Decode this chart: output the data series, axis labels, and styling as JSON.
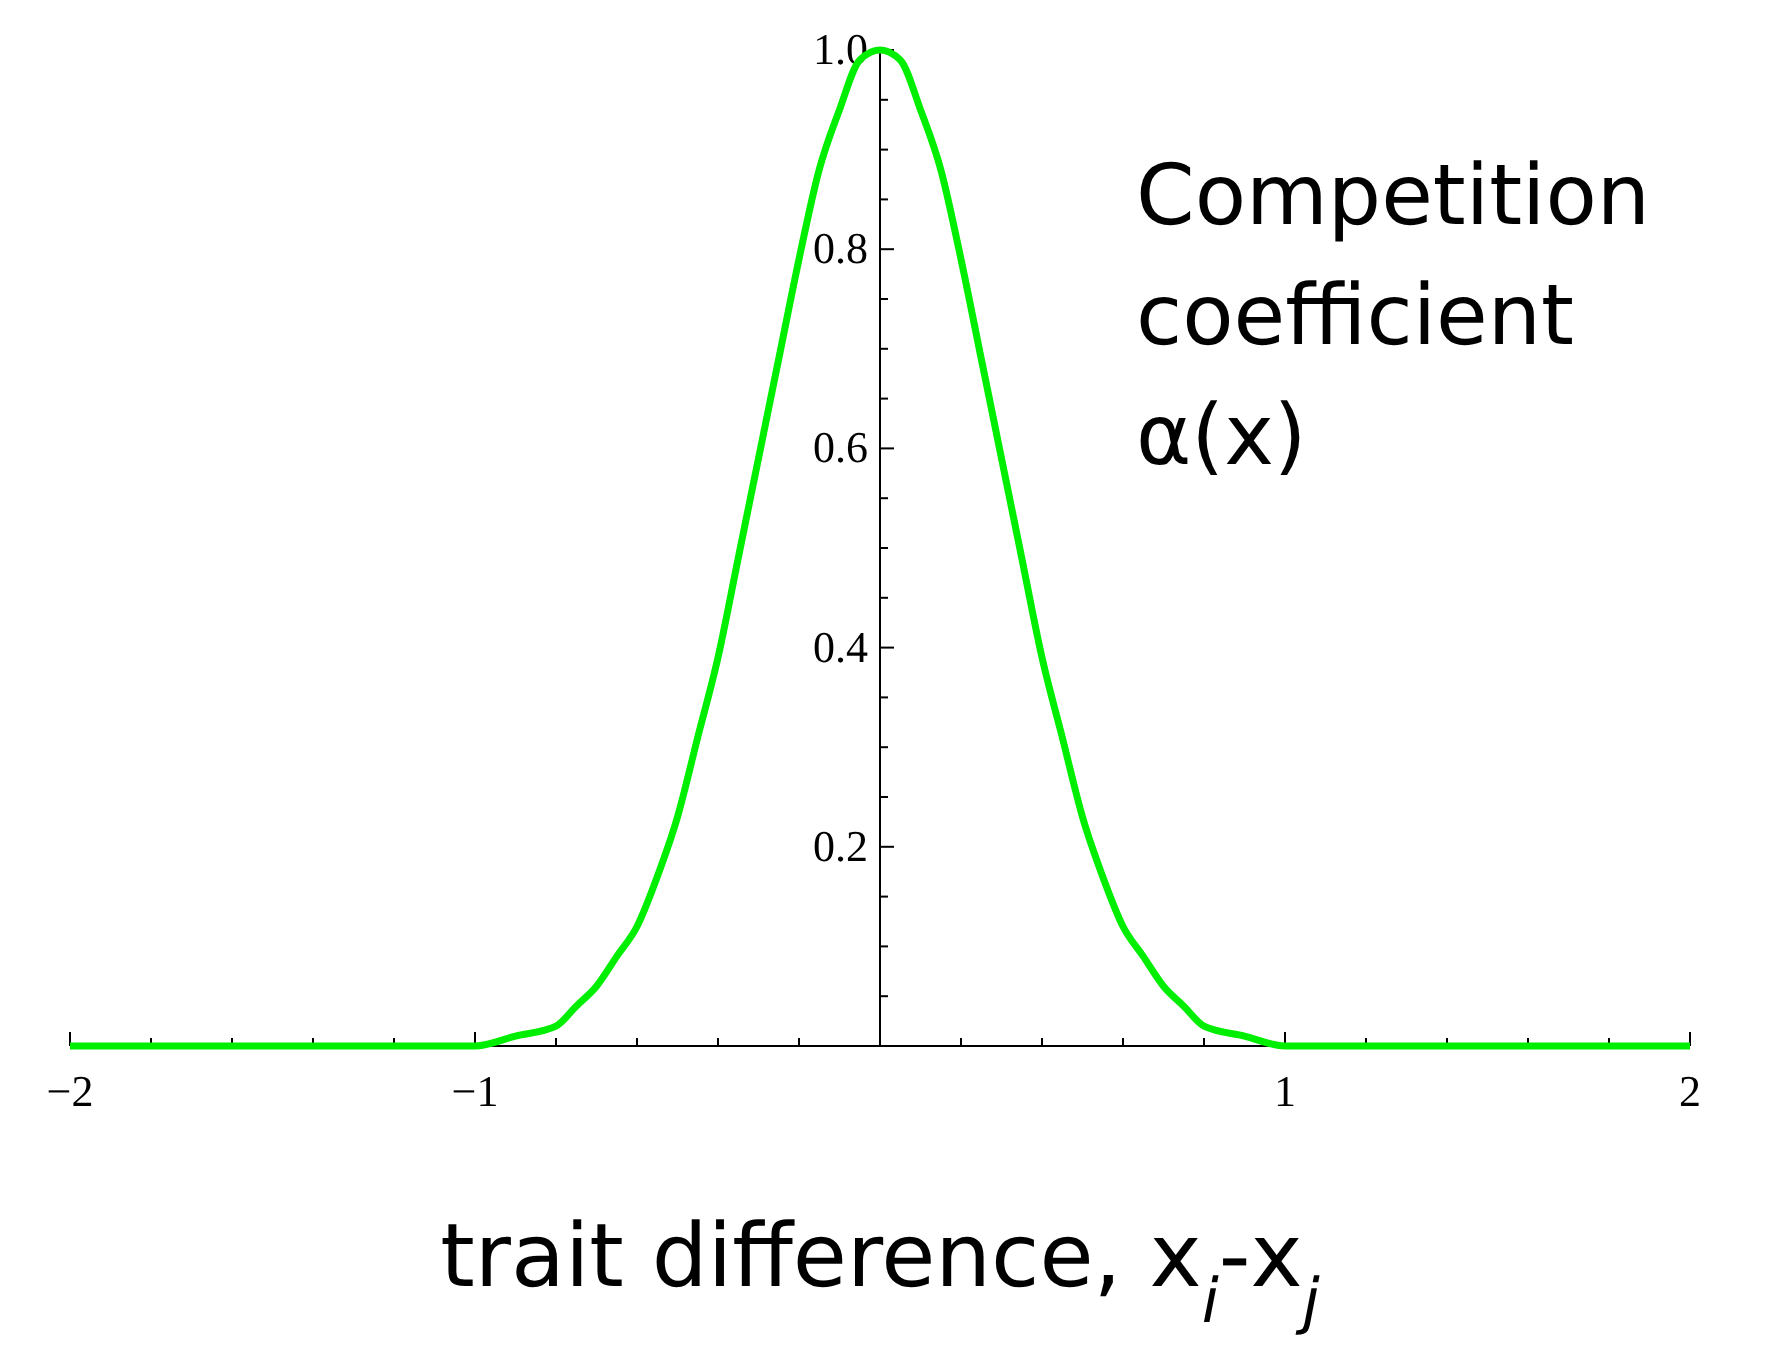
{
  "chart_data": {
    "type": "line",
    "xlabel": "trait difference, x$_{i}$-x$_{j}$",
    "ylabel": "Competition coefficient α(x)",
    "x": [
      -2,
      -1.5,
      -1.2,
      -1.1,
      -1,
      -0.9,
      -0.8,
      -0.75,
      -0.7,
      -0.65,
      -0.6,
      -0.55,
      -0.5,
      -0.45,
      -0.4,
      -0.35,
      -0.3,
      -0.25,
      -0.2,
      -0.15,
      -0.1,
      -0.05,
      0,
      0.05,
      0.1,
      0.15,
      0.2,
      0.25,
      0.3,
      0.35,
      0.4,
      0.45,
      0.5,
      0.55,
      0.6,
      0.65,
      0.7,
      0.75,
      0.8,
      0.9,
      1,
      1.1,
      1.2,
      1.5,
      2
    ],
    "series": [
      {
        "color": "#00ee00",
        "values": [
          0,
          0,
          0,
          0,
          0,
          0.01,
          0.02,
          0.04,
          0.06,
          0.09,
          0.12,
          0.17,
          0.23,
          0.31,
          0.39,
          0.49,
          0.59,
          0.69,
          0.79,
          0.88,
          0.94,
          0.99,
          1,
          0.99,
          0.94,
          0.88,
          0.79,
          0.69,
          0.59,
          0.49,
          0.39,
          0.31,
          0.23,
          0.17,
          0.12,
          0.09,
          0.06,
          0.04,
          0.02,
          0.01,
          0,
          0,
          0,
          0,
          0
        ]
      }
    ],
    "xlim": [
      -2,
      2
    ],
    "ylim": [
      0,
      1
    ],
    "xticks": [
      -2,
      {
        "value": -1.8,
        "label": null
      },
      {
        "value": -1.6,
        "label": null
      },
      {
        "value": -1.4,
        "label": null
      },
      {
        "value": -1.2,
        "label": null
      },
      -1,
      {
        "value": -0.8,
        "label": null
      },
      {
        "value": -0.6,
        "label": null
      },
      {
        "value": -0.4,
        "label": null
      },
      {
        "value": -0.2,
        "label": null
      },
      {
        "value": 0.2,
        "label": null
      },
      {
        "value": 0.4,
        "label": null
      },
      {
        "value": 0.6,
        "label": null
      },
      {
        "value": 0.8,
        "label": null
      },
      1,
      {
        "value": 1.2,
        "label": null
      },
      {
        "value": 1.4,
        "label": null
      },
      {
        "value": 1.6,
        "label": null
      },
      {
        "value": 1.8,
        "label": null
      },
      2
    ],
    "yticks": [
      {
        "value": 0.05,
        "label": null
      },
      {
        "value": 0.1,
        "label": null
      },
      {
        "value": 0.15,
        "label": null
      },
      0.2,
      {
        "value": 0.25,
        "label": null
      },
      {
        "value": 0.3,
        "label": null
      },
      {
        "value": 0.35,
        "label": null
      },
      0.4,
      {
        "value": 0.45,
        "label": null
      },
      {
        "value": 0.5,
        "label": null
      },
      {
        "value": 0.55,
        "label": null
      },
      0.6,
      {
        "value": 0.65,
        "label": null
      },
      {
        "value": 0.7,
        "label": null
      },
      {
        "value": 0.75,
        "label": null
      },
      0.8,
      {
        "value": 0.85,
        "label": null
      },
      {
        "value": 0.9,
        "label": null
      },
      {
        "value": 0.95,
        "label": null
      },
      {
        "value": 1,
        "label": "1.0"
      }
    ],
    "marker": "none",
    "line_style": "solid"
  }
}
